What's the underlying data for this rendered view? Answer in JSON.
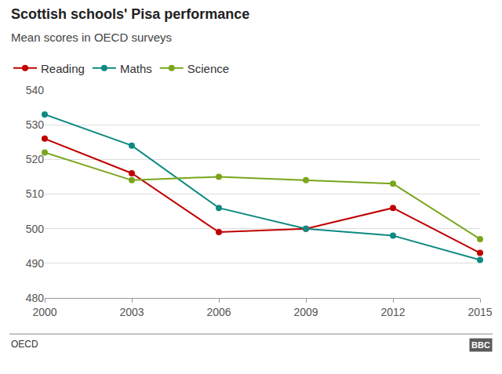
{
  "chart_data": {
    "type": "line",
    "title": "Scottish schools' Pisa performance",
    "subtitle": "Mean scores in OECD surveys",
    "source": "OECD",
    "credit": "BBC",
    "x": [
      2000,
      2003,
      2006,
      2009,
      2012,
      2015
    ],
    "series": [
      {
        "name": "Reading",
        "color": "#c00000",
        "values": [
          526,
          516,
          499,
          500,
          506,
          493
        ]
      },
      {
        "name": "Maths",
        "color": "#0e8a82",
        "values": [
          533,
          524,
          506,
          500,
          498,
          491
        ]
      },
      {
        "name": "Science",
        "color": "#7aa51c",
        "values": [
          522,
          514,
          515,
          514,
          513,
          497
        ]
      }
    ],
    "xlim": [
      2000,
      2015
    ],
    "xticks": [
      2000,
      2003,
      2006,
      2009,
      2012,
      2015
    ],
    "ylim": [
      480,
      540
    ],
    "yticks": [
      480,
      490,
      500,
      510,
      520,
      530,
      540
    ],
    "grid": true,
    "legend": "top left",
    "marker": "circle",
    "line_style": "solid"
  }
}
